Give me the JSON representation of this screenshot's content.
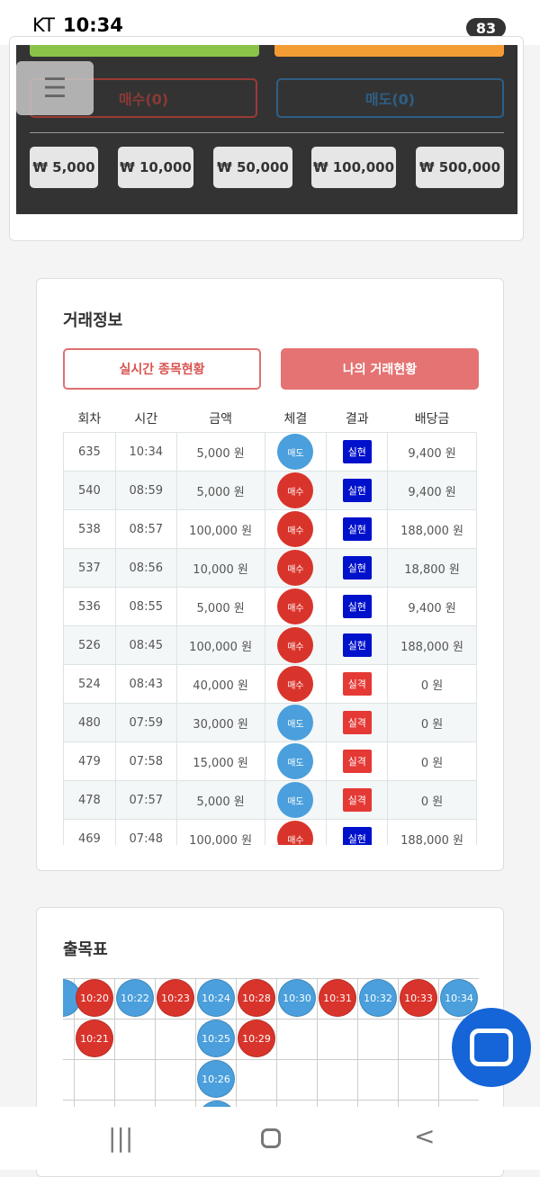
{
  "status_bar": {
    "carrier": "KT",
    "time": "10:34",
    "battery": "83"
  },
  "order_panel": {
    "buy_button": "매수(0)",
    "sell_button": "매도(0)",
    "amounts": [
      "₩ 5,000",
      "₩ 10,000",
      "₩ 50,000",
      "₩ 100,000",
      "₩ 500,000"
    ]
  },
  "trade_info": {
    "title": "거래정보",
    "tabs": [
      "실시간 종목현황",
      "나의 거래현황"
    ],
    "table": {
      "headers": [
        "회차",
        "시간",
        "금액",
        "체결",
        "결과",
        "배당금"
      ],
      "rows": [
        [
          "635",
          "10:34",
          "5,000 원",
          "매도",
          "실현",
          "9,400 원"
        ],
        [
          "540",
          "08:59",
          "5,000 원",
          "매수",
          "실현",
          "9,400 원"
        ],
        [
          "538",
          "08:57",
          "100,000 원",
          "매수",
          "실현",
          "188,000 원"
        ],
        [
          "537",
          "08:56",
          "10,000 원",
          "매수",
          "실현",
          "18,800 원"
        ],
        [
          "536",
          "08:55",
          "5,000 원",
          "매수",
          "실현",
          "9,400 원"
        ],
        [
          "526",
          "08:45",
          "100,000 원",
          "매수",
          "실현",
          "188,000 원"
        ],
        [
          "524",
          "08:43",
          "40,000 원",
          "매수",
          "실격",
          "0 원"
        ],
        [
          "480",
          "07:59",
          "30,000 원",
          "매도",
          "실격",
          "0 원"
        ],
        [
          "479",
          "07:58",
          "15,000 원",
          "매도",
          "실격",
          "0 원"
        ],
        [
          "478",
          "07:57",
          "5,000 원",
          "매도",
          "실격",
          "0 원"
        ],
        [
          "469",
          "07:48",
          "100,000 원",
          "매수",
          "실현",
          "188,000 원"
        ]
      ]
    }
  },
  "result_board": {
    "title": "출목표",
    "columns": [
      {
        "color": "#d9342b",
        "cells": [
          "10:20",
          "10:21"
        ]
      },
      {
        "color": "#4a9fdc",
        "cells": [
          "10:22"
        ]
      },
      {
        "color": "#d9342b",
        "cells": [
          "10:23"
        ]
      },
      {
        "color": "#4a9fdc",
        "cells": [
          "10:24",
          "10:25",
          "10:26"
        ]
      },
      {
        "color": "#d9342b",
        "cells": [
          "10:28",
          "10:29"
        ]
      },
      {
        "color": "#4a9fdc",
        "cells": [
          "10:30"
        ]
      },
      {
        "color": "#d9342b",
        "cells": [
          "10:31"
        ]
      },
      {
        "color": "#4a9fdc",
        "cells": [
          "10:32"
        ]
      },
      {
        "color": "#d9342b",
        "cells": [
          "10:33"
        ]
      },
      {
        "color": "#4a9fdc",
        "cells": [
          "10:34"
        ]
      }
    ]
  }
}
